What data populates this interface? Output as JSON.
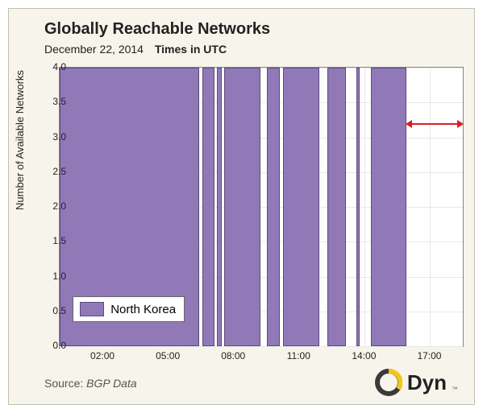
{
  "chart": {
    "type": "bar",
    "title": "Globally Reachable Networks",
    "subtitle_date": "December 22, 2014",
    "subtitle_tz": "Times in UTC",
    "ylabel": "Number of Available Networks",
    "background_color": "#f7f4eb",
    "plot_background": "#ffffff",
    "grid_color": "#e8e8e8",
    "border_color": "#888888",
    "title_fontsize": 20,
    "label_fontsize": 13,
    "tick_fontsize": 12,
    "x_domain_hours": [
      0,
      18.5
    ],
    "ylim": [
      0,
      4.0
    ],
    "ytick_step": 0.5,
    "yticks": [
      "0.0",
      "0.5",
      "1.0",
      "1.5",
      "2.0",
      "2.5",
      "3.0",
      "3.5",
      "4.0"
    ],
    "xticks": [
      {
        "hour": 2,
        "label": "02:00"
      },
      {
        "hour": 5,
        "label": "05:00"
      },
      {
        "hour": 8,
        "label": "08:00"
      },
      {
        "hour": 11,
        "label": "11:00"
      },
      {
        "hour": 14,
        "label": "14:00"
      },
      {
        "hour": 17,
        "label": "17:00"
      }
    ],
    "series": {
      "name": "North Korea",
      "color": "#9179b8",
      "border_color": "#5b4a7a",
      "segments": [
        {
          "start": 0.0,
          "end": 6.4,
          "value": 4
        },
        {
          "start": 6.55,
          "end": 7.1,
          "value": 4
        },
        {
          "start": 7.2,
          "end": 7.45,
          "value": 4
        },
        {
          "start": 7.55,
          "end": 9.2,
          "value": 4
        },
        {
          "start": 9.5,
          "end": 10.1,
          "value": 4
        },
        {
          "start": 10.25,
          "end": 11.9,
          "value": 4
        },
        {
          "start": 12.3,
          "end": 13.15,
          "value": 4
        },
        {
          "start": 13.6,
          "end": 13.75,
          "value": 4
        },
        {
          "start": 14.3,
          "end": 15.9,
          "value": 4
        }
      ]
    },
    "annotation_arrow": {
      "y": 3.2,
      "x_start": 16.1,
      "x_end": 18.3,
      "color": "#e21b1b",
      "line_width": 2
    },
    "legend": {
      "x_hour": 0.6,
      "y_value": 0.55,
      "swatch_color": "#9179b8",
      "label": "North Korea"
    }
  },
  "footer": {
    "source_prefix": "Source: ",
    "source_name": "BGP Data",
    "logo_text": "Dyn",
    "logo_colors": {
      "dark": "#3a3a3a",
      "yellow": "#f5c518"
    }
  }
}
